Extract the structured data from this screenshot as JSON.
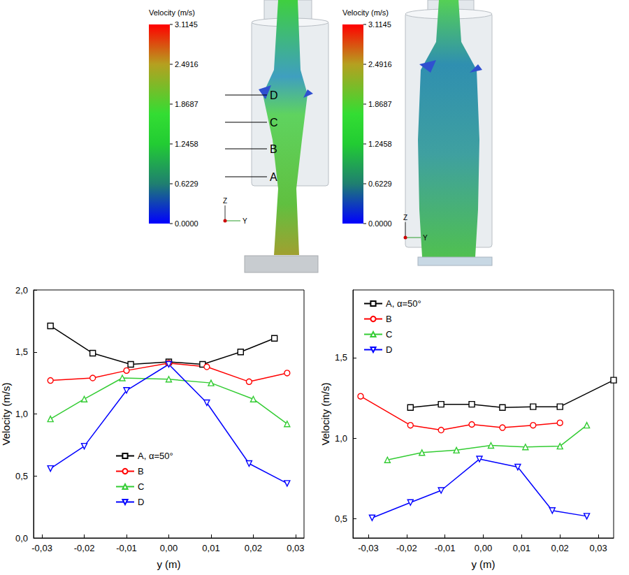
{
  "top_figure": {
    "colorbars": [
      {
        "title": "Velocity (m/s)",
        "range": [
          0,
          3.1145
        ],
        "ticks": [
          3.1145,
          2.4916,
          1.8687,
          1.2458,
          0.6229,
          {
            "value": 0,
            "label": "0.0000"
          }
        ]
      },
      {
        "title": "Velocity (m/s)",
        "range": [
          0,
          3.1145
        ],
        "ticks": [
          3.1145,
          2.4916,
          1.8687,
          1.2458,
          0.6229,
          {
            "value": 0,
            "label": "0.0000"
          }
        ]
      }
    ],
    "section_labels": [
      "D",
      "C",
      "B",
      "A"
    ],
    "axis_triad": [
      "Z",
      "Y"
    ]
  },
  "chart_data": [
    {
      "type": "line",
      "x_label": "y (m)",
      "y_label": "Velocity (m/s)",
      "xlim": [
        -0.032,
        0.032
      ],
      "xticks": [
        {
          "value": -0.03,
          "label": "-0,03"
        },
        {
          "value": -0.02,
          "label": "-0,02"
        },
        {
          "value": -0.01,
          "label": "-0,01"
        },
        {
          "value": 0,
          "label": "0,00"
        },
        {
          "value": 0.01,
          "label": "0,01"
        },
        {
          "value": 0.02,
          "label": "0,02"
        },
        {
          "value": 0.03,
          "label": "0,03"
        }
      ],
      "ylim": [
        0,
        2
      ],
      "yticks": [
        {
          "value": 0,
          "label": "0,0"
        },
        {
          "value": 0.5,
          "label": "0,5"
        },
        {
          "value": 1,
          "label": "1,0"
        },
        {
          "value": 1.5,
          "label": "1,5"
        },
        {
          "value": 2,
          "label": "2,0"
        }
      ],
      "grid": false,
      "legend": "lower-center",
      "series": [
        {
          "name": "A, α=50°",
          "color": "#000000",
          "marker": "square",
          "x": [
            -0.028,
            -0.018,
            -0.009,
            0.0,
            0.008,
            0.017,
            0.025
          ],
          "values": [
            1.71,
            1.49,
            1.4,
            1.42,
            1.4,
            1.5,
            1.61
          ]
        },
        {
          "name": "B",
          "color": "#ff0000",
          "marker": "circle",
          "x": [
            -0.028,
            -0.018,
            -0.01,
            0.0,
            0.009,
            0.019,
            0.028
          ],
          "values": [
            1.27,
            1.29,
            1.35,
            1.41,
            1.38,
            1.26,
            1.33
          ]
        },
        {
          "name": "C",
          "color": "#33cc33",
          "marker": "triangle-up",
          "x": [
            -0.028,
            -0.02,
            -0.011,
            0.0,
            0.01,
            0.02,
            0.028
          ],
          "values": [
            0.96,
            1.12,
            1.29,
            1.28,
            1.25,
            1.12,
            0.92
          ]
        },
        {
          "name": "D",
          "color": "#0000ff",
          "marker": "triangle-down",
          "x": [
            -0.028,
            -0.02,
            -0.01,
            0.0,
            0.009,
            0.019,
            0.028
          ],
          "values": [
            0.56,
            0.74,
            1.19,
            1.4,
            1.09,
            0.6,
            0.44
          ]
        }
      ]
    },
    {
      "type": "line",
      "x_label": "y (m)",
      "y_label": "Velocity (m/s)",
      "xlim": [
        -0.034,
        0.034
      ],
      "xticks": [
        {
          "value": -0.03,
          "label": "-0,03"
        },
        {
          "value": -0.02,
          "label": "-0,02"
        },
        {
          "value": -0.01,
          "label": "-0,01"
        },
        {
          "value": 0,
          "label": "0,00"
        },
        {
          "value": 0.01,
          "label": "0,01"
        },
        {
          "value": 0.02,
          "label": "0,02"
        },
        {
          "value": 0.03,
          "label": "0,03"
        }
      ],
      "ylim": [
        0.38,
        1.92
      ],
      "yticks": [
        {
          "value": 0.5,
          "label": "0,5"
        },
        {
          "value": 1,
          "label": "1,0"
        },
        {
          "value": 1.5,
          "label": "1,5"
        }
      ],
      "grid": false,
      "legend": "upper-left",
      "series": [
        {
          "name": "A, α=50°",
          "color": "#000000",
          "marker": "square",
          "x": [
            -0.019,
            -0.011,
            -0.003,
            0.005,
            0.013,
            0.02,
            0.034
          ],
          "values": [
            1.19,
            1.21,
            1.21,
            1.19,
            1.195,
            1.195,
            1.36
          ]
        },
        {
          "name": "B",
          "color": "#ff0000",
          "marker": "circle",
          "x": [
            -0.032,
            -0.019,
            -0.011,
            -0.003,
            0.005,
            0.013,
            0.02
          ],
          "values": [
            1.26,
            1.08,
            1.05,
            1.085,
            1.065,
            1.08,
            1.095
          ]
        },
        {
          "name": "C",
          "color": "#33cc33",
          "marker": "triangle-up",
          "x": [
            -0.025,
            -0.016,
            -0.007,
            0.002,
            0.011,
            0.02,
            0.027
          ],
          "values": [
            0.865,
            0.91,
            0.925,
            0.955,
            0.945,
            0.95,
            1.08
          ]
        },
        {
          "name": "D",
          "color": "#0000ff",
          "marker": "triangle-down",
          "x": [
            -0.029,
            -0.019,
            -0.011,
            -0.001,
            0.009,
            0.018,
            0.027
          ],
          "values": [
            0.505,
            0.6,
            0.675,
            0.87,
            0.82,
            0.55,
            0.515
          ]
        }
      ]
    }
  ]
}
